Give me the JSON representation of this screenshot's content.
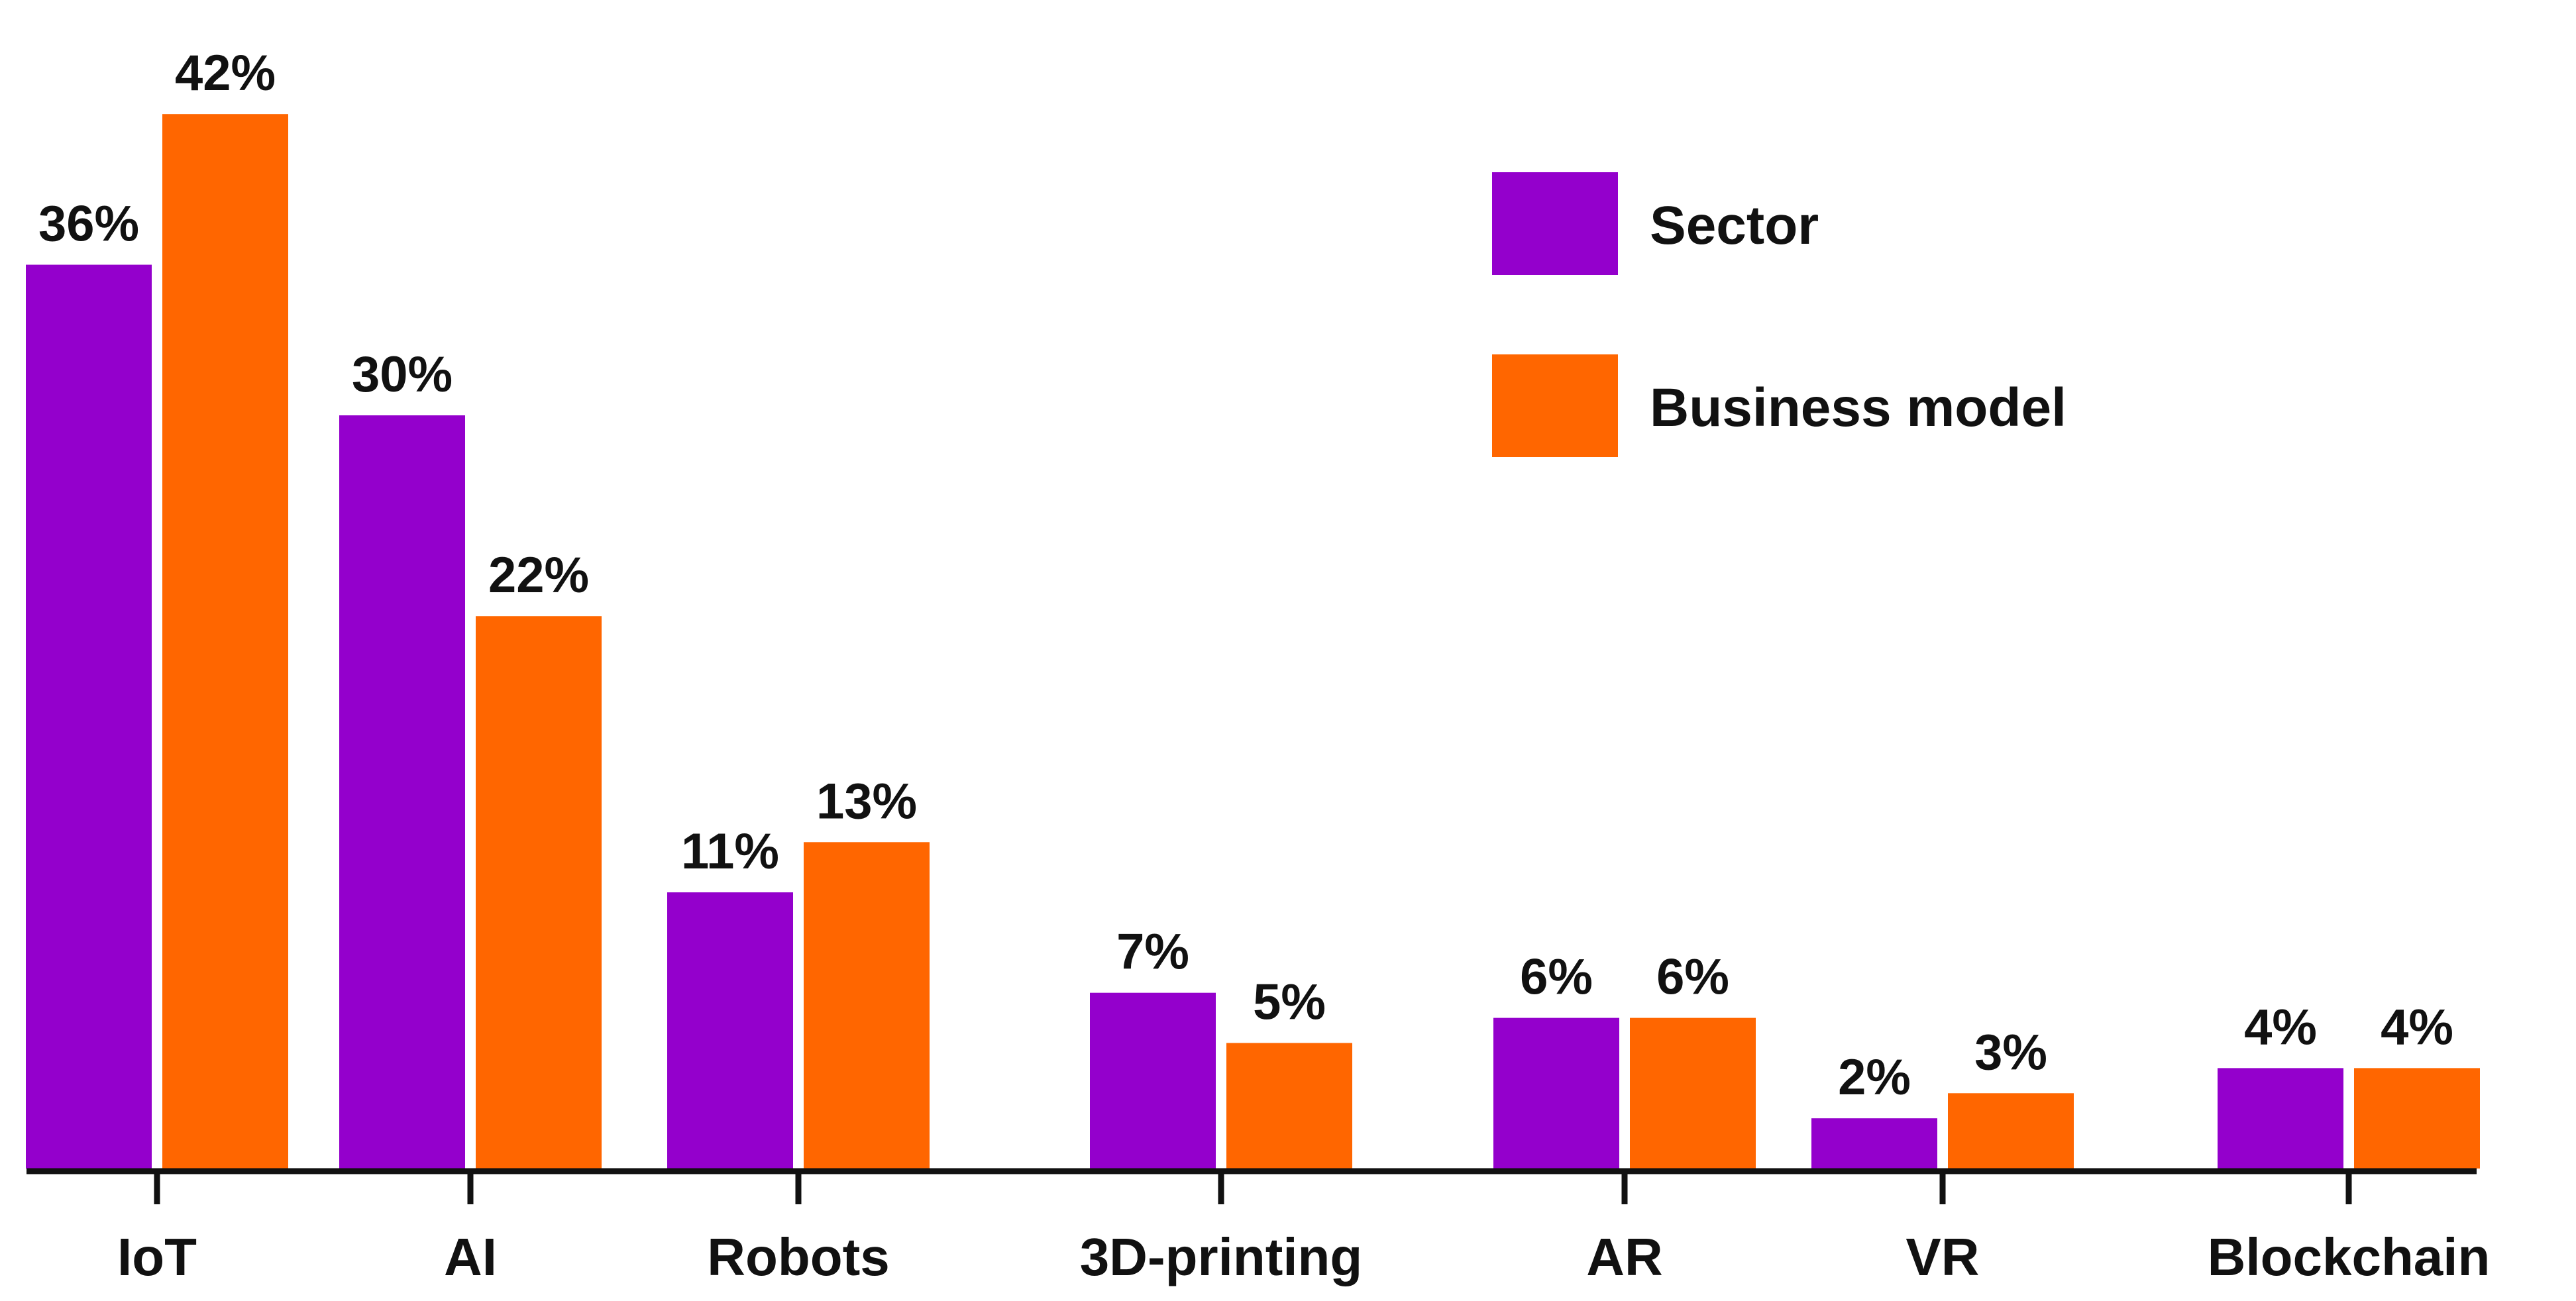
{
  "chart_data": {
    "type": "bar",
    "categories": [
      "IoT",
      "AI",
      "Robots",
      "3D-printing",
      "AR",
      "VR",
      "Blockchain"
    ],
    "series": [
      {
        "name": "Sector",
        "values": [
          36,
          30,
          11,
          7,
          6,
          2,
          4
        ],
        "labels": [
          "36%",
          "30%",
          "11%",
          "7%",
          "6%",
          "2%",
          "4%"
        ],
        "color": "#9400CC"
      },
      {
        "name": "Business model",
        "values": [
          42,
          22,
          13,
          5,
          6,
          3,
          4
        ],
        "labels": [
          "42%",
          "22%",
          "13%",
          "5%",
          "6%",
          "3%",
          "4%"
        ],
        "color": "#FF6600"
      }
    ],
    "ylim": [
      0,
      45
    ],
    "legend_position": "top-right",
    "grid": false
  }
}
